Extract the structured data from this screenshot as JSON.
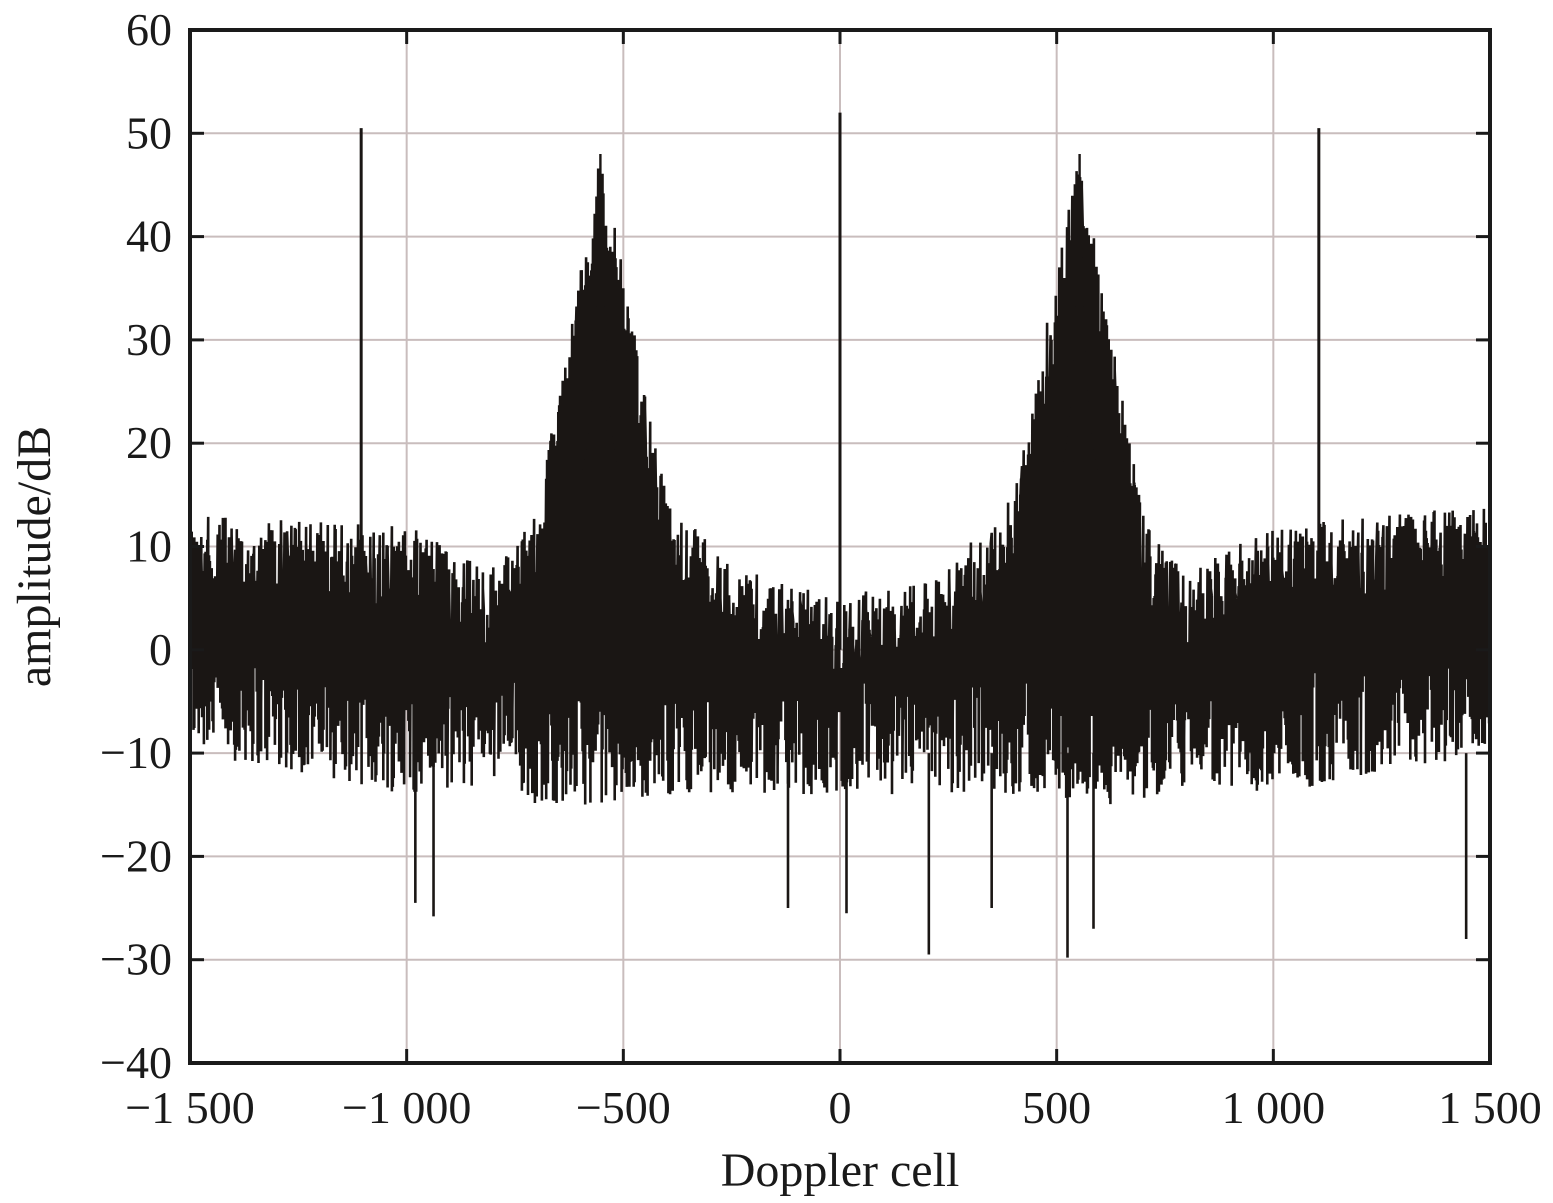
{
  "chart_data": {
    "type": "line",
    "xlabel": "Doppler cell",
    "ylabel": "amplitude/dB",
    "xlim": [
      -1500,
      1500
    ],
    "ylim": [
      -40,
      60
    ],
    "grid": true,
    "x_ticks": [
      -1500,
      -1000,
      -500,
      0,
      500,
      1000,
      1500
    ],
    "x_tick_labels": [
      "−1 500",
      "−1 000",
      "−500",
      "0",
      "500",
      "1 000",
      "1 500"
    ],
    "y_ticks": [
      -40,
      -30,
      -20,
      -10,
      0,
      10,
      20,
      30,
      40,
      50,
      60
    ],
    "y_tick_labels": [
      "−40",
      "−30",
      "−20",
      "−10",
      "0",
      "10",
      "20",
      "30",
      "40",
      "50",
      "60"
    ],
    "line_color": "#1a1614",
    "description_of_features": {
      "spikes": [
        {
          "x": -1105,
          "y": 50.5
        },
        {
          "x": 0,
          "y": 52
        },
        {
          "x": 1105,
          "y": 50.5
        }
      ],
      "peaks": [
        {
          "x": -553,
          "y": 48
        },
        {
          "x": 553,
          "y": 48
        }
      ],
      "noise_floor_envelope": [
        {
          "x": -1500,
          "upper": 13,
          "lower": -10
        },
        {
          "x": -1000,
          "upper": 12,
          "lower": -14
        },
        {
          "x": -800,
          "upper": 8,
          "lower": -13
        },
        {
          "x": -700,
          "upper": 13,
          "lower": -15
        },
        {
          "x": -553,
          "upper": 48,
          "lower": -15
        },
        {
          "x": -400,
          "upper": 15,
          "lower": -14
        },
        {
          "x": -250,
          "upper": 8,
          "lower": -14
        },
        {
          "x": 0,
          "upper": 5,
          "lower": -14
        },
        {
          "x": 250,
          "upper": 8,
          "lower": -14
        },
        {
          "x": 400,
          "upper": 15,
          "lower": -14
        },
        {
          "x": 553,
          "upper": 48,
          "lower": -15
        },
        {
          "x": 700,
          "upper": 13,
          "lower": -15
        },
        {
          "x": 800,
          "upper": 8,
          "lower": -13
        },
        {
          "x": 1000,
          "upper": 12,
          "lower": -14
        },
        {
          "x": 1500,
          "upper": 14,
          "lower": -10
        }
      ],
      "deep_nulls": [
        {
          "x": -980,
          "y": -24.5
        },
        {
          "x": -938,
          "y": -25.8
        },
        {
          "x": -120,
          "y": -25
        },
        {
          "x": 15,
          "y": -25.5
        },
        {
          "x": 205,
          "y": -29.5
        },
        {
          "x": 350,
          "y": -25
        },
        {
          "x": 525,
          "y": -29.8
        },
        {
          "x": 585,
          "y": -27
        },
        {
          "x": 1445,
          "y": -28
        }
      ]
    }
  }
}
